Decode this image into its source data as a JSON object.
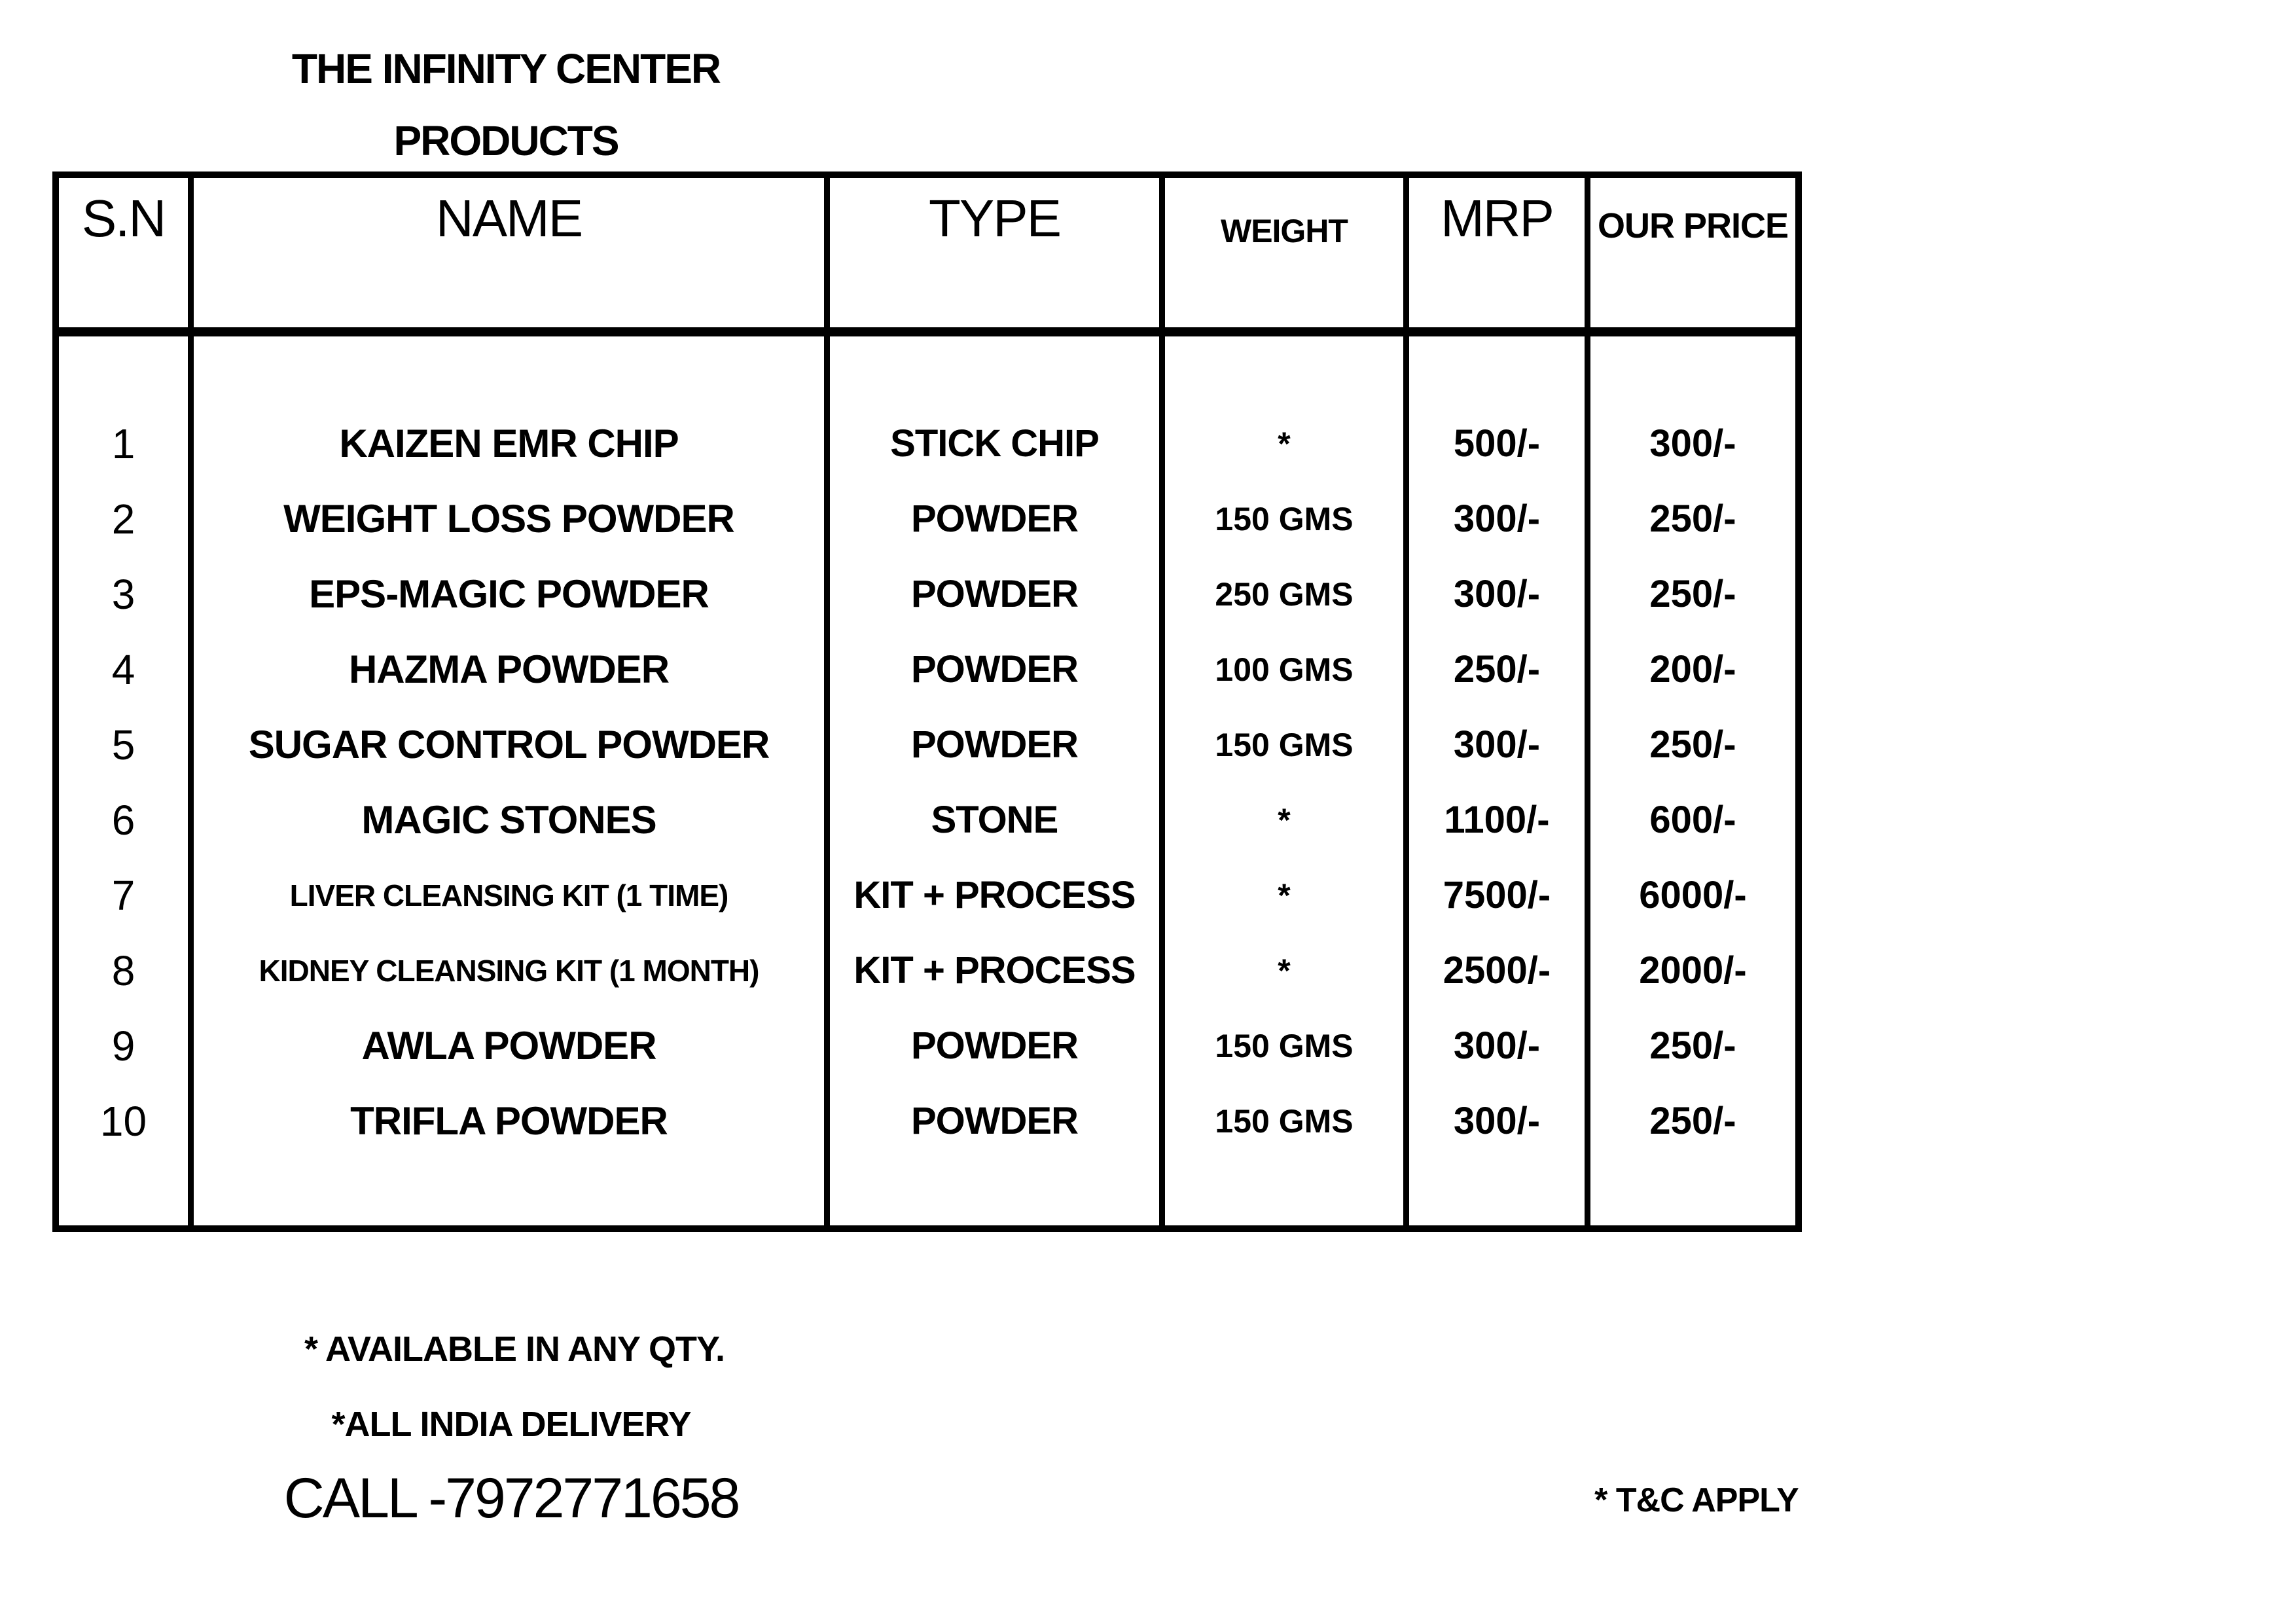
{
  "title": {
    "line1": "THE INFINITY CENTER",
    "line2": "PRODUCTS"
  },
  "table": {
    "headers": {
      "sn": "S.N",
      "name": "NAME",
      "type": "TYPE",
      "weight": "WEIGHT",
      "mrp": "MRP",
      "our_price": "OUR PRICE"
    },
    "rows": [
      {
        "sn": "1",
        "name": "KAIZEN EMR CHIP",
        "type": "STICK CHIP",
        "weight": "*",
        "mrp": "500/-",
        "our_price": "300/-"
      },
      {
        "sn": "2",
        "name": "WEIGHT LOSS POWDER",
        "type": "POWDER",
        "weight": "150 GMS",
        "mrp": "300/-",
        "our_price": "250/-"
      },
      {
        "sn": "3",
        "name": "EPS-MAGIC POWDER",
        "type": "POWDER",
        "weight": "250 GMS",
        "mrp": "300/-",
        "our_price": "250/-"
      },
      {
        "sn": "4",
        "name": "HAZMA POWDER",
        "type": "POWDER",
        "weight": "100 GMS",
        "mrp": "250/-",
        "our_price": "200/-"
      },
      {
        "sn": "5",
        "name": "SUGAR CONTROL POWDER",
        "type": "POWDER",
        "weight": "150 GMS",
        "mrp": "300/-",
        "our_price": "250/-"
      },
      {
        "sn": "6",
        "name": "MAGIC STONES",
        "type": "STONE",
        "weight": "*",
        "mrp": "1100/-",
        "our_price": "600/-"
      },
      {
        "sn": "7",
        "name": "LIVER CLEANSING KIT (1 TIME)",
        "type": "KIT + PROCESS",
        "weight": "*",
        "mrp": "7500/-",
        "our_price": "6000/-"
      },
      {
        "sn": "8",
        "name": "KIDNEY CLEANSING KIT (1 MONTH)",
        "type": "KIT + PROCESS",
        "weight": "*",
        "mrp": "2500/-",
        "our_price": "2000/-"
      },
      {
        "sn": "9",
        "name": "AWLA POWDER",
        "type": "POWDER",
        "weight": "150 GMS",
        "mrp": "300/-",
        "our_price": "250/-"
      },
      {
        "sn": "10",
        "name": "TRIFLA POWDER",
        "type": "POWDER",
        "weight": "150 GMS",
        "mrp": "300/-",
        "our_price": "250/-"
      }
    ]
  },
  "footer": {
    "note1": "* AVAILABLE IN ANY QTY.",
    "note2": "*ALL INDIA DELIVERY",
    "call": "CALL -7972771658",
    "tnc": "* T&C APPLY"
  }
}
